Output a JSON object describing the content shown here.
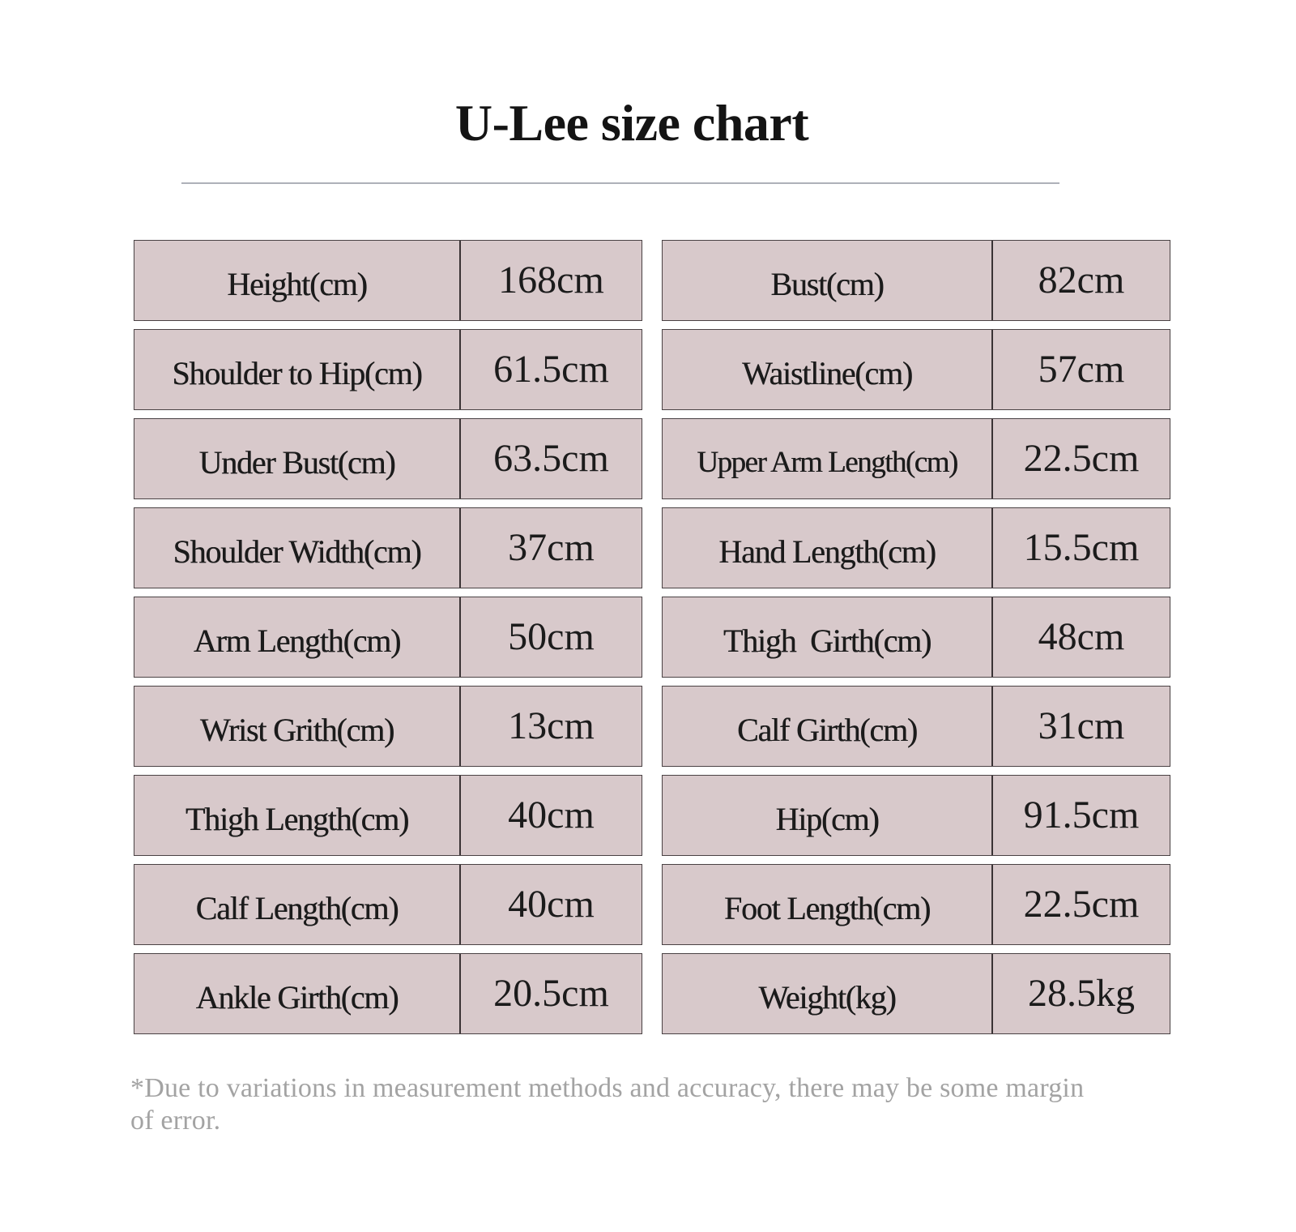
{
  "title": "U-Lee size chart",
  "left_table": [
    {
      "label": "Height(cm)",
      "value": "168cm"
    },
    {
      "label": "Shoulder to Hip(cm)",
      "value": "61.5cm"
    },
    {
      "label": "Under Bust(cm)",
      "value": "63.5cm"
    },
    {
      "label": "Shoulder Width(cm)",
      "value": "37cm"
    },
    {
      "label": "Arm Length(cm)",
      "value": "50cm"
    },
    {
      "label": "Wrist Grith(cm)",
      "value": "13cm"
    },
    {
      "label": "Thigh Length(cm)",
      "value": "40cm"
    },
    {
      "label": "Calf Length(cm)",
      "value": "40cm"
    },
    {
      "label": "Ankle Girth(cm)",
      "value": "20.5cm"
    }
  ],
  "right_table": [
    {
      "label": "Bust(cm)",
      "value": "82cm"
    },
    {
      "label": "Waistline(cm)",
      "value": "57cm"
    },
    {
      "label": "Upper Arm Length(cm)",
      "value": "22.5cm"
    },
    {
      "label": "Hand Length(cm)",
      "value": "15.5cm"
    },
    {
      "label": "Thigh  Girth(cm)",
      "value": "48cm"
    },
    {
      "label": "Calf Girth(cm)",
      "value": "31cm"
    },
    {
      "label": "Hip(cm)",
      "value": "91.5cm"
    },
    {
      "label": "Foot Length(cm)",
      "value": "22.5cm"
    },
    {
      "label": "Weight(kg)",
      "value": "28.5kg"
    }
  ],
  "footnote": "*Due to variations in measurement methods and accuracy, there may be some margin of error.",
  "colors": {
    "cell_background": "#d8c9cb",
    "cell_border": "#4a4244",
    "divider": "#aeb1b9",
    "footnote_text": "#a3a3a3"
  }
}
